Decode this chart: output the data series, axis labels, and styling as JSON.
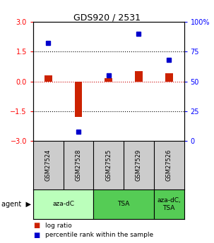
{
  "title": "GDS920 / 2531",
  "samples": [
    "GSM27524",
    "GSM27528",
    "GSM27525",
    "GSM27529",
    "GSM27526"
  ],
  "log_ratio": [
    0.3,
    -1.8,
    0.15,
    0.5,
    0.4
  ],
  "percentile_rank": [
    82,
    8,
    55,
    90,
    68
  ],
  "agents": [
    {
      "label": "aza-dC",
      "span": [
        0,
        2
      ],
      "color": "#bbffbb"
    },
    {
      "label": "TSA",
      "span": [
        2,
        4
      ],
      "color": "#55cc55"
    },
    {
      "label": "aza-dC,\nTSA",
      "span": [
        4,
        5
      ],
      "color": "#55cc55"
    }
  ],
  "ylim": [
    -3,
    3
  ],
  "yticks_left": [
    -3,
    -1.5,
    0,
    1.5,
    3
  ],
  "bar_color": "#cc2200",
  "dot_color": "#0000cc",
  "hline_color": "#cc0000",
  "dotline_color": "black",
  "bg_plot": "#ffffff",
  "bg_sample": "#cccccc",
  "legend_bar_label": "log ratio",
  "legend_dot_label": "percentile rank within the sample",
  "agent_label": "agent"
}
